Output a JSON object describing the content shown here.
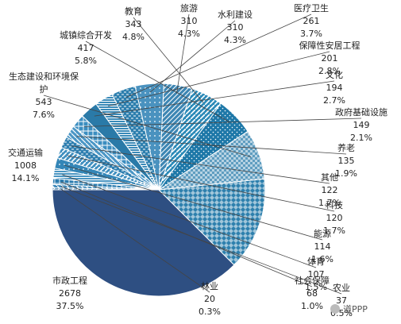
{
  "chart_data": {
    "type": "pie",
    "title": "",
    "start_angle_deg": 180,
    "direction": "counterclockwise",
    "slices": [
      {
        "label": "市政工程",
        "value": 2678,
        "percent": "37.5%",
        "color": "#2e4f82",
        "pattern": "solid"
      },
      {
        "label": "交通运输",
        "value": 1008,
        "percent": "14.1%",
        "color": "#2e80ad",
        "pattern": "diamond"
      },
      {
        "label": "生态建设和环境保护",
        "value": 543,
        "percent": "7.6%",
        "color": "#5f9dc0",
        "pattern": "checker"
      },
      {
        "label": "城镇综合开发",
        "value": 417,
        "percent": "5.8%",
        "color": "#1e78a8",
        "pattern": "dots"
      },
      {
        "label": "教育",
        "value": 343,
        "percent": "4.8%",
        "color": "#2d8bb8",
        "pattern": "stripes-light"
      },
      {
        "label": "旅游",
        "value": 310,
        "percent": "4.3%",
        "color": "#3d86b3",
        "pattern": "stripes-dense"
      },
      {
        "label": "水利建设",
        "value": 310,
        "percent": "4.3%",
        "color": "#4a92bf",
        "pattern": "dots-sparse"
      },
      {
        "label": "医疗卫生",
        "value": 261,
        "percent": "3.7%",
        "color": "#2e7fae",
        "pattern": "dash"
      },
      {
        "label": "保障性安居工程",
        "value": 201,
        "percent": "2.8%",
        "color": "#3a8ab8",
        "pattern": "horiz"
      },
      {
        "label": "文化",
        "value": 194,
        "percent": "2.7%",
        "color": "#2a7aa8",
        "pattern": "solid"
      },
      {
        "label": "政府基础设施",
        "value": 149,
        "percent": "2.1%",
        "color": "#3b8ec0",
        "pattern": "grid"
      },
      {
        "label": "养老",
        "value": 135,
        "percent": "1.9%",
        "color": "#4c97c6",
        "pattern": "diag"
      },
      {
        "label": "其他",
        "value": 122,
        "percent": "1.7%",
        "color": "#2f7fb0",
        "pattern": "dash"
      },
      {
        "label": "科技",
        "value": 120,
        "percent": "1.7%",
        "color": "#4190c0",
        "pattern": "stripes-light"
      },
      {
        "label": "能源",
        "value": 114,
        "percent": "1.6%",
        "color": "#3486b7",
        "pattern": "dots-sparse"
      },
      {
        "label": "体育",
        "value": 107,
        "percent": "1.5%",
        "color": "#4a95c2",
        "pattern": "horiz"
      },
      {
        "label": "社会保障",
        "value": 68,
        "percent": "1.0%",
        "color": "#2b7caf",
        "pattern": "grid"
      },
      {
        "label": "农业",
        "value": 37,
        "percent": "0.5%",
        "color": "#3d89ba",
        "pattern": "diag"
      },
      {
        "label": "林业",
        "value": 20,
        "percent": "0.3%",
        "color": "#2a6fa0",
        "pattern": "stripes-dense"
      }
    ]
  },
  "watermark": "道PPP"
}
